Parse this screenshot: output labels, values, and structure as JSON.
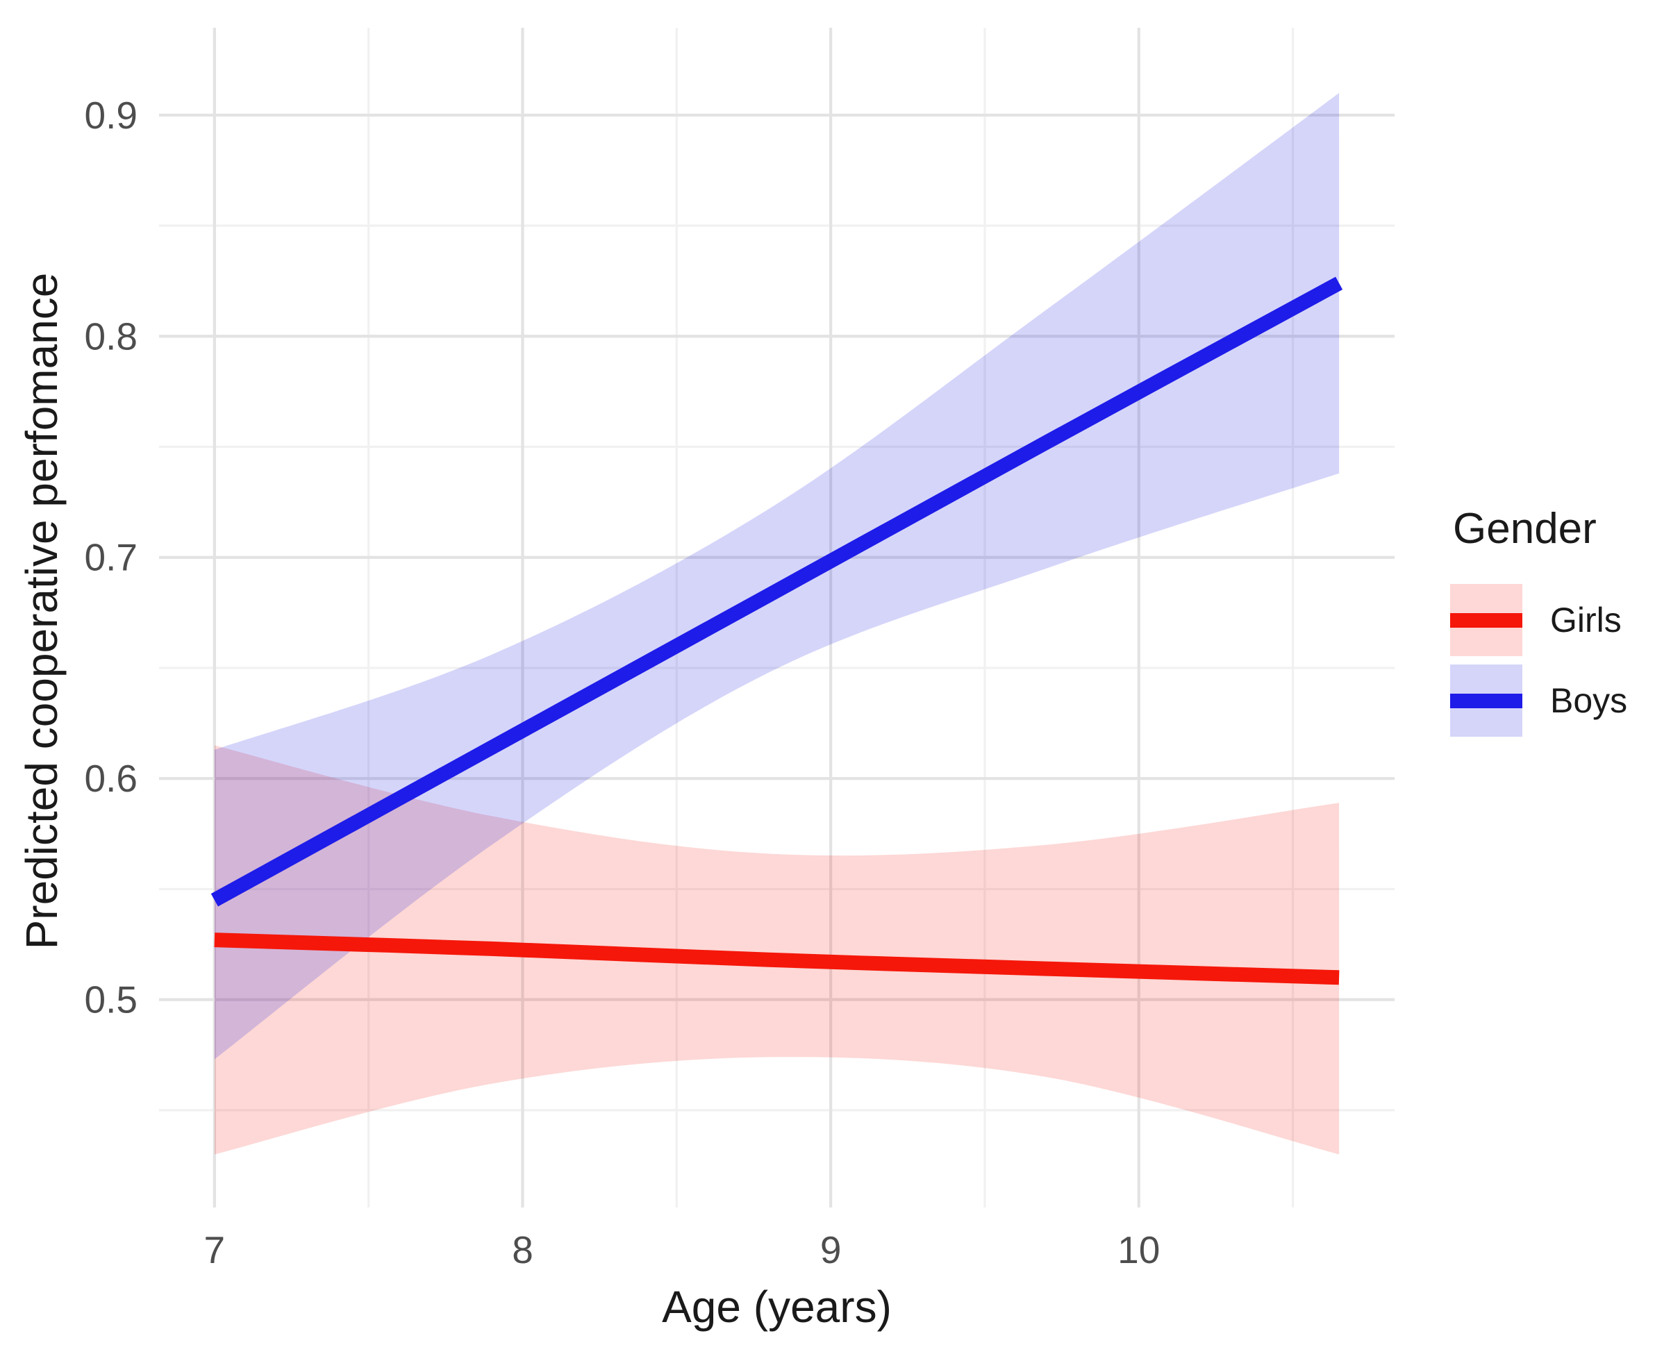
{
  "chart_data": {
    "type": "line",
    "title": "",
    "xlabel": "Age (years)",
    "ylabel": "Predicted cooperative perfomance",
    "x_ticks": [
      7,
      8,
      9,
      10
    ],
    "x_minor_ticks": [
      7.5,
      8.5,
      9.5,
      10.5
    ],
    "y_ticks": [
      0.5,
      0.6,
      0.7,
      0.8,
      0.9
    ],
    "y_minor_ticks": [
      0.45,
      0.55,
      0.65,
      0.75,
      0.85
    ],
    "xlim": [
      6.82,
      10.83
    ],
    "ylim": [
      0.406,
      0.9395
    ],
    "grid": true,
    "background": "#ffffff",
    "major_grid_color": "#e3e3e3",
    "minor_grid_color": "#f1f1f1",
    "tick_label_color": "#4d4d4d",
    "legend": {
      "title": "Gender",
      "position": "right",
      "entries": [
        {
          "label": "Girls",
          "line_color": "#f5170a",
          "fill_color": "#f5170a",
          "fill_opacity": 0.17
        },
        {
          "label": "Boys",
          "line_color": "#1e1ce8",
          "fill_color": "#2020e6",
          "fill_opacity": 0.19
        }
      ]
    },
    "series": [
      {
        "name": "Girls",
        "line_color": "#f5170a",
        "fill_color": "#f5170a",
        "fill_opacity": 0.17,
        "x": [
          7.0,
          7.9,
          8.8,
          9.7,
          10.65
        ],
        "y": [
          0.527,
          0.523,
          0.518,
          0.514,
          0.51
        ],
        "upper": [
          0.615,
          0.583,
          0.566,
          0.57,
          0.589
        ],
        "lower": [
          0.43,
          0.462,
          0.474,
          0.465,
          0.43
        ]
      },
      {
        "name": "Boys",
        "line_color": "#1e1ce8",
        "fill_color": "#2020e6",
        "fill_opacity": 0.19,
        "x": [
          7.0,
          7.9,
          8.8,
          9.7,
          10.65
        ],
        "y": [
          0.545,
          0.614,
          0.683,
          0.752,
          0.824
        ],
        "upper": [
          0.613,
          0.656,
          0.722,
          0.812,
          0.91
        ],
        "lower": [
          0.473,
          0.57,
          0.648,
          0.695,
          0.738
        ]
      }
    ]
  }
}
